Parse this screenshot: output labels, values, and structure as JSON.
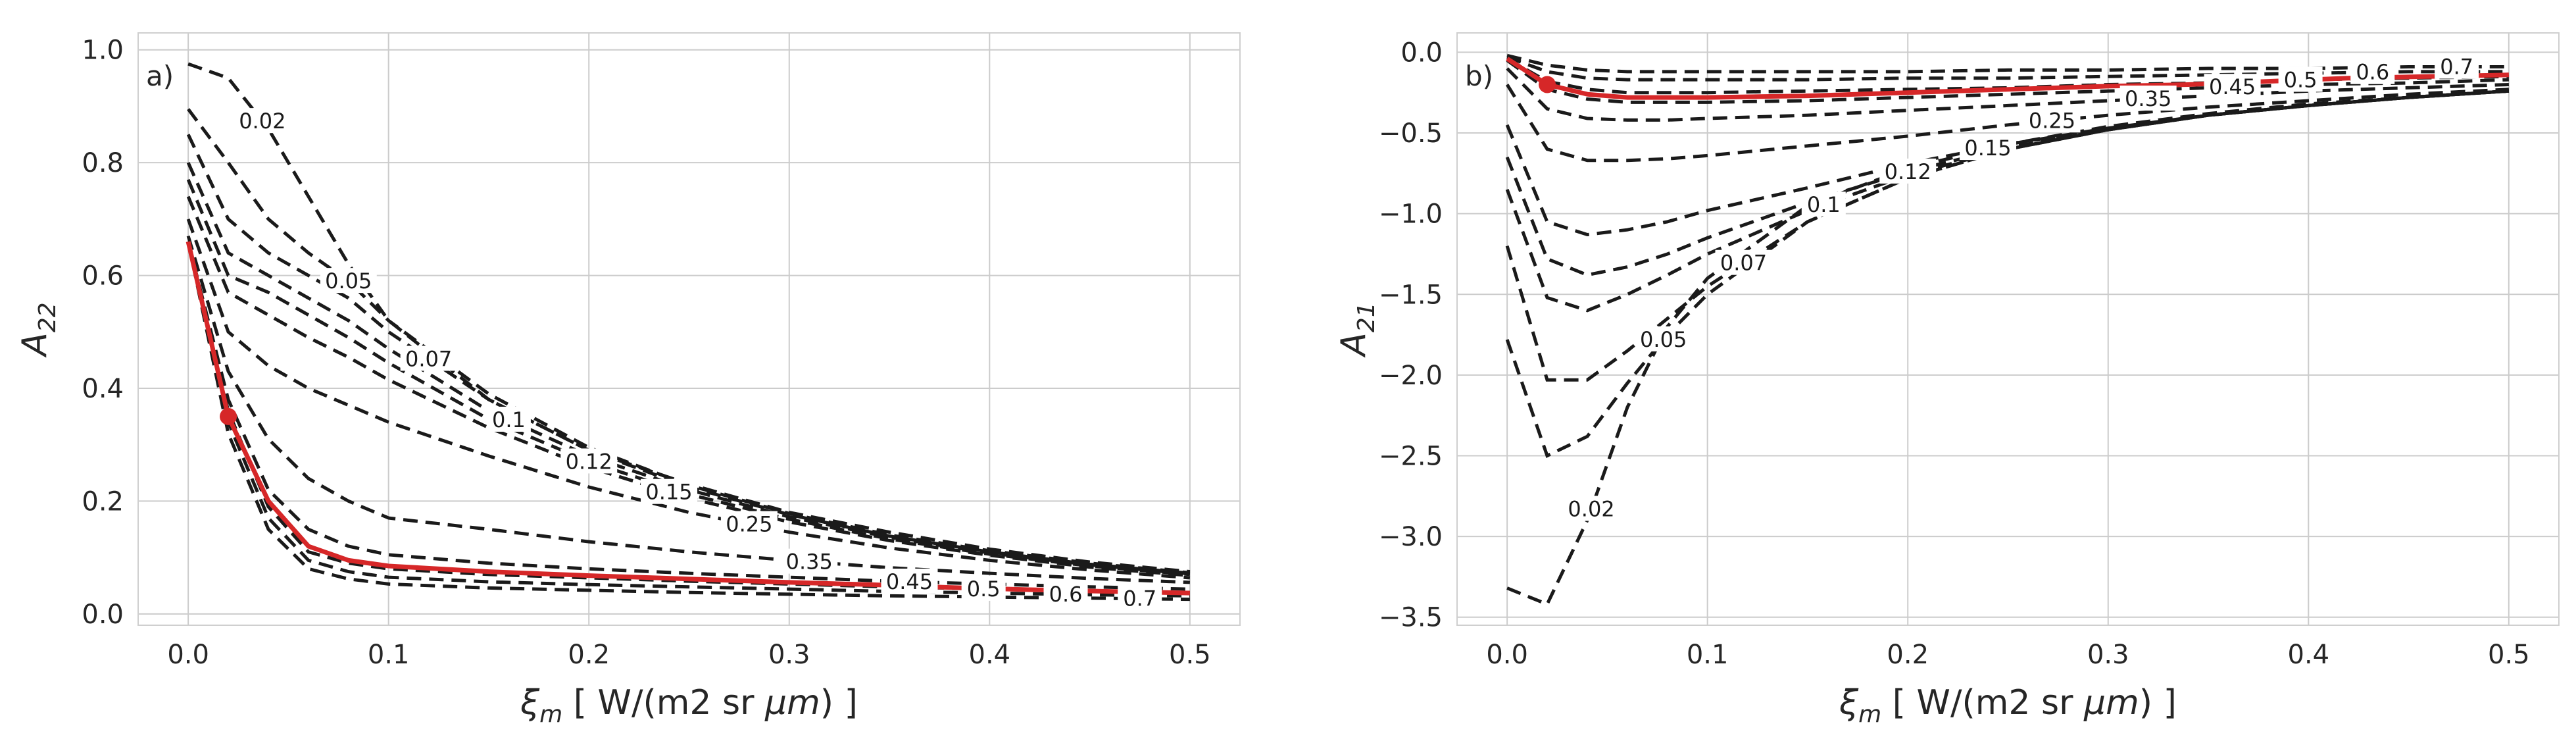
{
  "chart_data": [
    {
      "type": "line",
      "panel_label": "a)",
      "ylabel": "A_22",
      "ylabel_main": "A",
      "ylabel_sub": "22",
      "xlabel_var": "ξ",
      "xlabel_sub": "m",
      "xlabel_unit_a": " [ W/(m2 sr ",
      "xlabel_unit_mu": "μm",
      "xlabel_unit_b": ") ]",
      "xlim": [
        -0.025,
        0.525
      ],
      "ylim": [
        -0.02,
        1.03
      ],
      "xticks": [
        0.0,
        0.1,
        0.2,
        0.3,
        0.4,
        0.5
      ],
      "xtick_labels": [
        "0.0",
        "0.1",
        "0.2",
        "0.3",
        "0.4",
        "0.5"
      ],
      "yticks": [
        0.0,
        0.2,
        0.4,
        0.6,
        0.8,
        1.0
      ],
      "ytick_labels": [
        "0.0",
        "0.2",
        "0.4",
        "0.6",
        "0.8",
        "1.0"
      ],
      "grid": true,
      "series": [
        {
          "name": "0.02",
          "label_x": 0.037,
          "color": "#1a1a1a",
          "x": [
            0.0,
            0.02,
            0.04,
            0.06,
            0.08,
            0.1,
            0.15,
            0.2,
            0.25,
            0.3,
            0.35,
            0.4,
            0.45,
            0.5
          ],
          "y": [
            0.975,
            0.95,
            0.86,
            0.74,
            0.62,
            0.52,
            0.38,
            0.29,
            0.23,
            0.18,
            0.145,
            0.115,
            0.092,
            0.075
          ]
        },
        {
          "name": "0.05",
          "label_x": 0.08,
          "color": "#1a1a1a",
          "x": [
            0.0,
            0.02,
            0.04,
            0.06,
            0.08,
            0.1,
            0.15,
            0.2,
            0.25,
            0.3,
            0.35,
            0.4,
            0.45,
            0.5
          ],
          "y": [
            0.895,
            0.8,
            0.7,
            0.64,
            0.59,
            0.52,
            0.39,
            0.295,
            0.228,
            0.178,
            0.14,
            0.112,
            0.09,
            0.073
          ]
        },
        {
          "name": "0.07",
          "label_x": 0.12,
          "color": "#1a1a1a",
          "x": [
            0.0,
            0.02,
            0.04,
            0.06,
            0.08,
            0.1,
            0.15,
            0.2,
            0.25,
            0.3,
            0.35,
            0.4,
            0.45,
            0.5
          ],
          "y": [
            0.85,
            0.7,
            0.64,
            0.6,
            0.56,
            0.5,
            0.38,
            0.29,
            0.225,
            0.176,
            0.138,
            0.11,
            0.088,
            0.072
          ]
        },
        {
          "name": "0.1",
          "label_x": 0.16,
          "color": "#1a1a1a",
          "x": [
            0.0,
            0.02,
            0.04,
            0.06,
            0.08,
            0.1,
            0.15,
            0.2,
            0.25,
            0.3,
            0.35,
            0.4,
            0.45,
            0.5
          ],
          "y": [
            0.8,
            0.64,
            0.6,
            0.56,
            0.52,
            0.47,
            0.36,
            0.28,
            0.22,
            0.172,
            0.136,
            0.108,
            0.087,
            0.071
          ]
        },
        {
          "name": "0.12",
          "label_x": 0.2,
          "color": "#1a1a1a",
          "x": [
            0.0,
            0.02,
            0.04,
            0.06,
            0.08,
            0.1,
            0.15,
            0.2,
            0.25,
            0.3,
            0.35,
            0.4,
            0.45,
            0.5
          ],
          "y": [
            0.77,
            0.6,
            0.57,
            0.53,
            0.49,
            0.445,
            0.345,
            0.27,
            0.212,
            0.168,
            0.133,
            0.106,
            0.085,
            0.07
          ]
        },
        {
          "name": "0.15",
          "label_x": 0.24,
          "color": "#1a1a1a",
          "x": [
            0.0,
            0.02,
            0.04,
            0.06,
            0.08,
            0.1,
            0.15,
            0.2,
            0.25,
            0.3,
            0.35,
            0.4,
            0.45,
            0.5
          ],
          "y": [
            0.74,
            0.57,
            0.53,
            0.49,
            0.455,
            0.415,
            0.33,
            0.26,
            0.205,
            0.163,
            0.13,
            0.104,
            0.083,
            0.068
          ]
        },
        {
          "name": "0.25",
          "label_x": 0.28,
          "color": "#1a1a1a",
          "x": [
            0.0,
            0.02,
            0.04,
            0.06,
            0.08,
            0.1,
            0.15,
            0.2,
            0.25,
            0.3,
            0.35,
            0.4,
            0.45,
            0.5
          ],
          "y": [
            0.7,
            0.5,
            0.44,
            0.4,
            0.37,
            0.34,
            0.28,
            0.225,
            0.18,
            0.145,
            0.117,
            0.095,
            0.078,
            0.064
          ]
        },
        {
          "name": "0.35",
          "label_x": 0.31,
          "color": "#1a1a1a",
          "x": [
            0.0,
            0.02,
            0.04,
            0.06,
            0.08,
            0.1,
            0.15,
            0.2,
            0.25,
            0.3,
            0.35,
            0.4,
            0.45,
            0.5
          ],
          "y": [
            0.67,
            0.43,
            0.31,
            0.24,
            0.2,
            0.17,
            0.15,
            0.128,
            0.11,
            0.095,
            0.082,
            0.072,
            0.063,
            0.056
          ]
        },
        {
          "name": "0.45",
          "label_x": 0.36,
          "color": "#1a1a1a",
          "x": [
            0.0,
            0.02,
            0.04,
            0.06,
            0.08,
            0.1,
            0.15,
            0.2,
            0.25,
            0.3,
            0.35,
            0.4,
            0.45,
            0.5
          ],
          "y": [
            0.66,
            0.38,
            0.22,
            0.15,
            0.12,
            0.105,
            0.09,
            0.08,
            0.072,
            0.065,
            0.058,
            0.053,
            0.048,
            0.044
          ]
        },
        {
          "name": "0.5",
          "label_x": 0.397,
          "color": "#1a1a1a",
          "x": [
            0.0,
            0.02,
            0.04,
            0.06,
            0.08,
            0.1,
            0.15,
            0.2,
            0.25,
            0.3,
            0.35,
            0.4,
            0.45,
            0.5
          ],
          "y": [
            0.66,
            0.36,
            0.19,
            0.11,
            0.09,
            0.08,
            0.07,
            0.064,
            0.058,
            0.053,
            0.048,
            0.044,
            0.041,
            0.038
          ]
        },
        {
          "name": "0.6",
          "label_x": 0.438,
          "color": "#1a1a1a",
          "x": [
            0.0,
            0.02,
            0.04,
            0.06,
            0.08,
            0.1,
            0.15,
            0.2,
            0.25,
            0.3,
            0.35,
            0.4,
            0.45,
            0.5
          ],
          "y": [
            0.66,
            0.34,
            0.17,
            0.095,
            0.075,
            0.065,
            0.057,
            0.052,
            0.048,
            0.044,
            0.04,
            0.037,
            0.034,
            0.032
          ]
        },
        {
          "name": "0.7",
          "label_x": 0.475,
          "color": "#1a1a1a",
          "x": [
            0.0,
            0.02,
            0.04,
            0.06,
            0.08,
            0.1,
            0.15,
            0.2,
            0.25,
            0.3,
            0.35,
            0.4,
            0.45,
            0.5
          ],
          "y": [
            0.66,
            0.32,
            0.15,
            0.08,
            0.062,
            0.053,
            0.046,
            0.042,
            0.038,
            0.035,
            0.032,
            0.03,
            0.028,
            0.026
          ]
        },
        {
          "name": "",
          "color": "#d62728",
          "x": [
            0.0,
            0.02,
            0.04,
            0.06,
            0.08,
            0.1,
            0.15,
            0.2,
            0.25,
            0.3,
            0.34,
            0.38,
            0.42,
            0.46,
            0.5
          ],
          "y": [
            0.66,
            0.35,
            0.2,
            0.12,
            0.095,
            0.085,
            0.075,
            0.068,
            0.062,
            0.056,
            0.052,
            0.047,
            0.043,
            0.04,
            0.037
          ]
        }
      ],
      "highlight_point": {
        "x": 0.02,
        "y": 0.35
      }
    },
    {
      "type": "line",
      "panel_label": "b)",
      "ylabel": "A_21",
      "ylabel_main": "A",
      "ylabel_sub": "21",
      "xlabel_var": "ξ",
      "xlabel_sub": "m",
      "xlabel_unit_a": " [ W/(m2 sr ",
      "xlabel_unit_mu": "μm",
      "xlabel_unit_b": ") ]",
      "xlim": [
        -0.025,
        0.525
      ],
      "ylim": [
        -3.55,
        0.12
      ],
      "xticks": [
        0.0,
        0.1,
        0.2,
        0.3,
        0.4,
        0.5
      ],
      "xtick_labels": [
        "0.0",
        "0.1",
        "0.2",
        "0.3",
        "0.4",
        "0.5"
      ],
      "yticks": [
        0.0,
        -0.5,
        -1.0,
        -1.5,
        -2.0,
        -2.5,
        -3.0,
        -3.5
      ],
      "ytick_labels": [
        "0.0",
        "−0.5",
        "−1.0",
        "−1.5",
        "−2.0",
        "−2.5",
        "−3.0",
        "−3.5"
      ],
      "grid": true,
      "series": [
        {
          "name": "0.02",
          "label_x": 0.042,
          "color": "#1a1a1a",
          "x": [
            0.0,
            0.02,
            0.04,
            0.06,
            0.08,
            0.1,
            0.15,
            0.2,
            0.25,
            0.3,
            0.35,
            0.4,
            0.45,
            0.5
          ],
          "y": [
            -3.32,
            -3.42,
            -2.9,
            -2.2,
            -1.7,
            -1.4,
            -0.95,
            -0.72,
            -0.57,
            -0.46,
            -0.38,
            -0.32,
            -0.28,
            -0.24
          ]
        },
        {
          "name": "0.05",
          "label_x": 0.078,
          "color": "#1a1a1a",
          "x": [
            0.0,
            0.02,
            0.04,
            0.06,
            0.08,
            0.1,
            0.15,
            0.2,
            0.25,
            0.3,
            0.35,
            0.4,
            0.45,
            0.5
          ],
          "y": [
            -1.78,
            -2.5,
            -2.38,
            -2.05,
            -1.75,
            -1.5,
            -1.05,
            -0.78,
            -0.6,
            -0.48,
            -0.39,
            -0.33,
            -0.28,
            -0.24
          ]
        },
        {
          "name": "0.07",
          "label_x": 0.118,
          "color": "#1a1a1a",
          "x": [
            0.0,
            0.02,
            0.04,
            0.06,
            0.08,
            0.1,
            0.15,
            0.2,
            0.25,
            0.3,
            0.35,
            0.4,
            0.45,
            0.5
          ],
          "y": [
            -1.2,
            -2.03,
            -2.03,
            -1.85,
            -1.65,
            -1.45,
            -1.05,
            -0.78,
            -0.6,
            -0.48,
            -0.39,
            -0.33,
            -0.28,
            -0.24
          ]
        },
        {
          "name": "0.1",
          "label_x": 0.158,
          "color": "#1a1a1a",
          "x": [
            0.0,
            0.02,
            0.04,
            0.06,
            0.08,
            0.1,
            0.15,
            0.2,
            0.25,
            0.3,
            0.35,
            0.4,
            0.45,
            0.5
          ],
          "y": [
            -0.85,
            -1.52,
            -1.6,
            -1.5,
            -1.38,
            -1.25,
            -0.98,
            -0.76,
            -0.6,
            -0.48,
            -0.39,
            -0.33,
            -0.28,
            -0.24
          ]
        },
        {
          "name": "0.12",
          "label_x": 0.2,
          "color": "#1a1a1a",
          "x": [
            0.0,
            0.02,
            0.04,
            0.06,
            0.08,
            0.1,
            0.15,
            0.2,
            0.25,
            0.3,
            0.35,
            0.4,
            0.45,
            0.5
          ],
          "y": [
            -0.65,
            -1.28,
            -1.38,
            -1.33,
            -1.25,
            -1.15,
            -0.93,
            -0.74,
            -0.59,
            -0.48,
            -0.39,
            -0.33,
            -0.28,
            -0.24
          ]
        },
        {
          "name": "0.15",
          "label_x": 0.24,
          "color": "#1a1a1a",
          "x": [
            0.0,
            0.02,
            0.04,
            0.06,
            0.08,
            0.1,
            0.15,
            0.2,
            0.25,
            0.3,
            0.35,
            0.4,
            0.45,
            0.5
          ],
          "y": [
            -0.45,
            -1.05,
            -1.13,
            -1.1,
            -1.05,
            -0.98,
            -0.84,
            -0.69,
            -0.57,
            -0.47,
            -0.39,
            -0.33,
            -0.28,
            -0.24
          ]
        },
        {
          "name": "0.25",
          "label_x": 0.272,
          "color": "#1a1a1a",
          "x": [
            0.0,
            0.02,
            0.04,
            0.06,
            0.08,
            0.1,
            0.15,
            0.2,
            0.25,
            0.3,
            0.35,
            0.4,
            0.45,
            0.5
          ],
          "y": [
            -0.2,
            -0.6,
            -0.67,
            -0.67,
            -0.66,
            -0.64,
            -0.58,
            -0.52,
            -0.45,
            -0.39,
            -0.34,
            -0.3,
            -0.26,
            -0.23
          ]
        },
        {
          "name": "0.35",
          "label_x": 0.32,
          "color": "#1a1a1a",
          "x": [
            0.0,
            0.02,
            0.04,
            0.06,
            0.08,
            0.1,
            0.15,
            0.2,
            0.25,
            0.3,
            0.35,
            0.4,
            0.45,
            0.5
          ],
          "y": [
            -0.1,
            -0.35,
            -0.41,
            -0.42,
            -0.42,
            -0.41,
            -0.39,
            -0.36,
            -0.33,
            -0.3,
            -0.27,
            -0.24,
            -0.22,
            -0.2
          ]
        },
        {
          "name": "0.45",
          "label_x": 0.362,
          "color": "#1a1a1a",
          "x": [
            0.0,
            0.02,
            0.04,
            0.06,
            0.08,
            0.1,
            0.15,
            0.2,
            0.25,
            0.3,
            0.35,
            0.4,
            0.45,
            0.5
          ],
          "y": [
            -0.05,
            -0.23,
            -0.29,
            -0.31,
            -0.31,
            -0.31,
            -0.3,
            -0.28,
            -0.26,
            -0.24,
            -0.22,
            -0.2,
            -0.19,
            -0.17
          ]
        },
        {
          "name": "0.5",
          "label_x": 0.396,
          "color": "#1a1a1a",
          "x": [
            0.0,
            0.02,
            0.04,
            0.06,
            0.08,
            0.1,
            0.15,
            0.2,
            0.25,
            0.3,
            0.35,
            0.4,
            0.45,
            0.5
          ],
          "y": [
            -0.04,
            -0.18,
            -0.23,
            -0.25,
            -0.25,
            -0.25,
            -0.24,
            -0.23,
            -0.22,
            -0.2,
            -0.19,
            -0.17,
            -0.16,
            -0.15
          ]
        },
        {
          "name": "0.6",
          "label_x": 0.432,
          "color": "#1a1a1a",
          "x": [
            0.0,
            0.02,
            0.04,
            0.06,
            0.08,
            0.1,
            0.15,
            0.2,
            0.25,
            0.3,
            0.35,
            0.4,
            0.45,
            0.5
          ],
          "y": [
            -0.03,
            -0.12,
            -0.16,
            -0.17,
            -0.17,
            -0.17,
            -0.17,
            -0.16,
            -0.16,
            -0.15,
            -0.14,
            -0.13,
            -0.12,
            -0.12
          ]
        },
        {
          "name": "0.7",
          "label_x": 0.474,
          "color": "#1a1a1a",
          "x": [
            0.0,
            0.02,
            0.04,
            0.06,
            0.08,
            0.1,
            0.15,
            0.2,
            0.25,
            0.3,
            0.35,
            0.4,
            0.45,
            0.5
          ],
          "y": [
            -0.02,
            -0.08,
            -0.11,
            -0.12,
            -0.12,
            -0.12,
            -0.12,
            -0.12,
            -0.11,
            -0.11,
            -0.1,
            -0.1,
            -0.09,
            -0.09
          ]
        },
        {
          "name": "",
          "color": "#d62728",
          "x": [
            0.0,
            0.02,
            0.04,
            0.06,
            0.08,
            0.1,
            0.15,
            0.2,
            0.25,
            0.3,
            0.34,
            0.38,
            0.42,
            0.46,
            0.5
          ],
          "y": [
            -0.04,
            -0.2,
            -0.26,
            -0.28,
            -0.28,
            -0.28,
            -0.27,
            -0.25,
            -0.23,
            -0.21,
            -0.2,
            -0.18,
            -0.16,
            -0.15,
            -0.14
          ]
        }
      ],
      "highlight_point": {
        "x": 0.02,
        "y": -0.2
      }
    }
  ]
}
